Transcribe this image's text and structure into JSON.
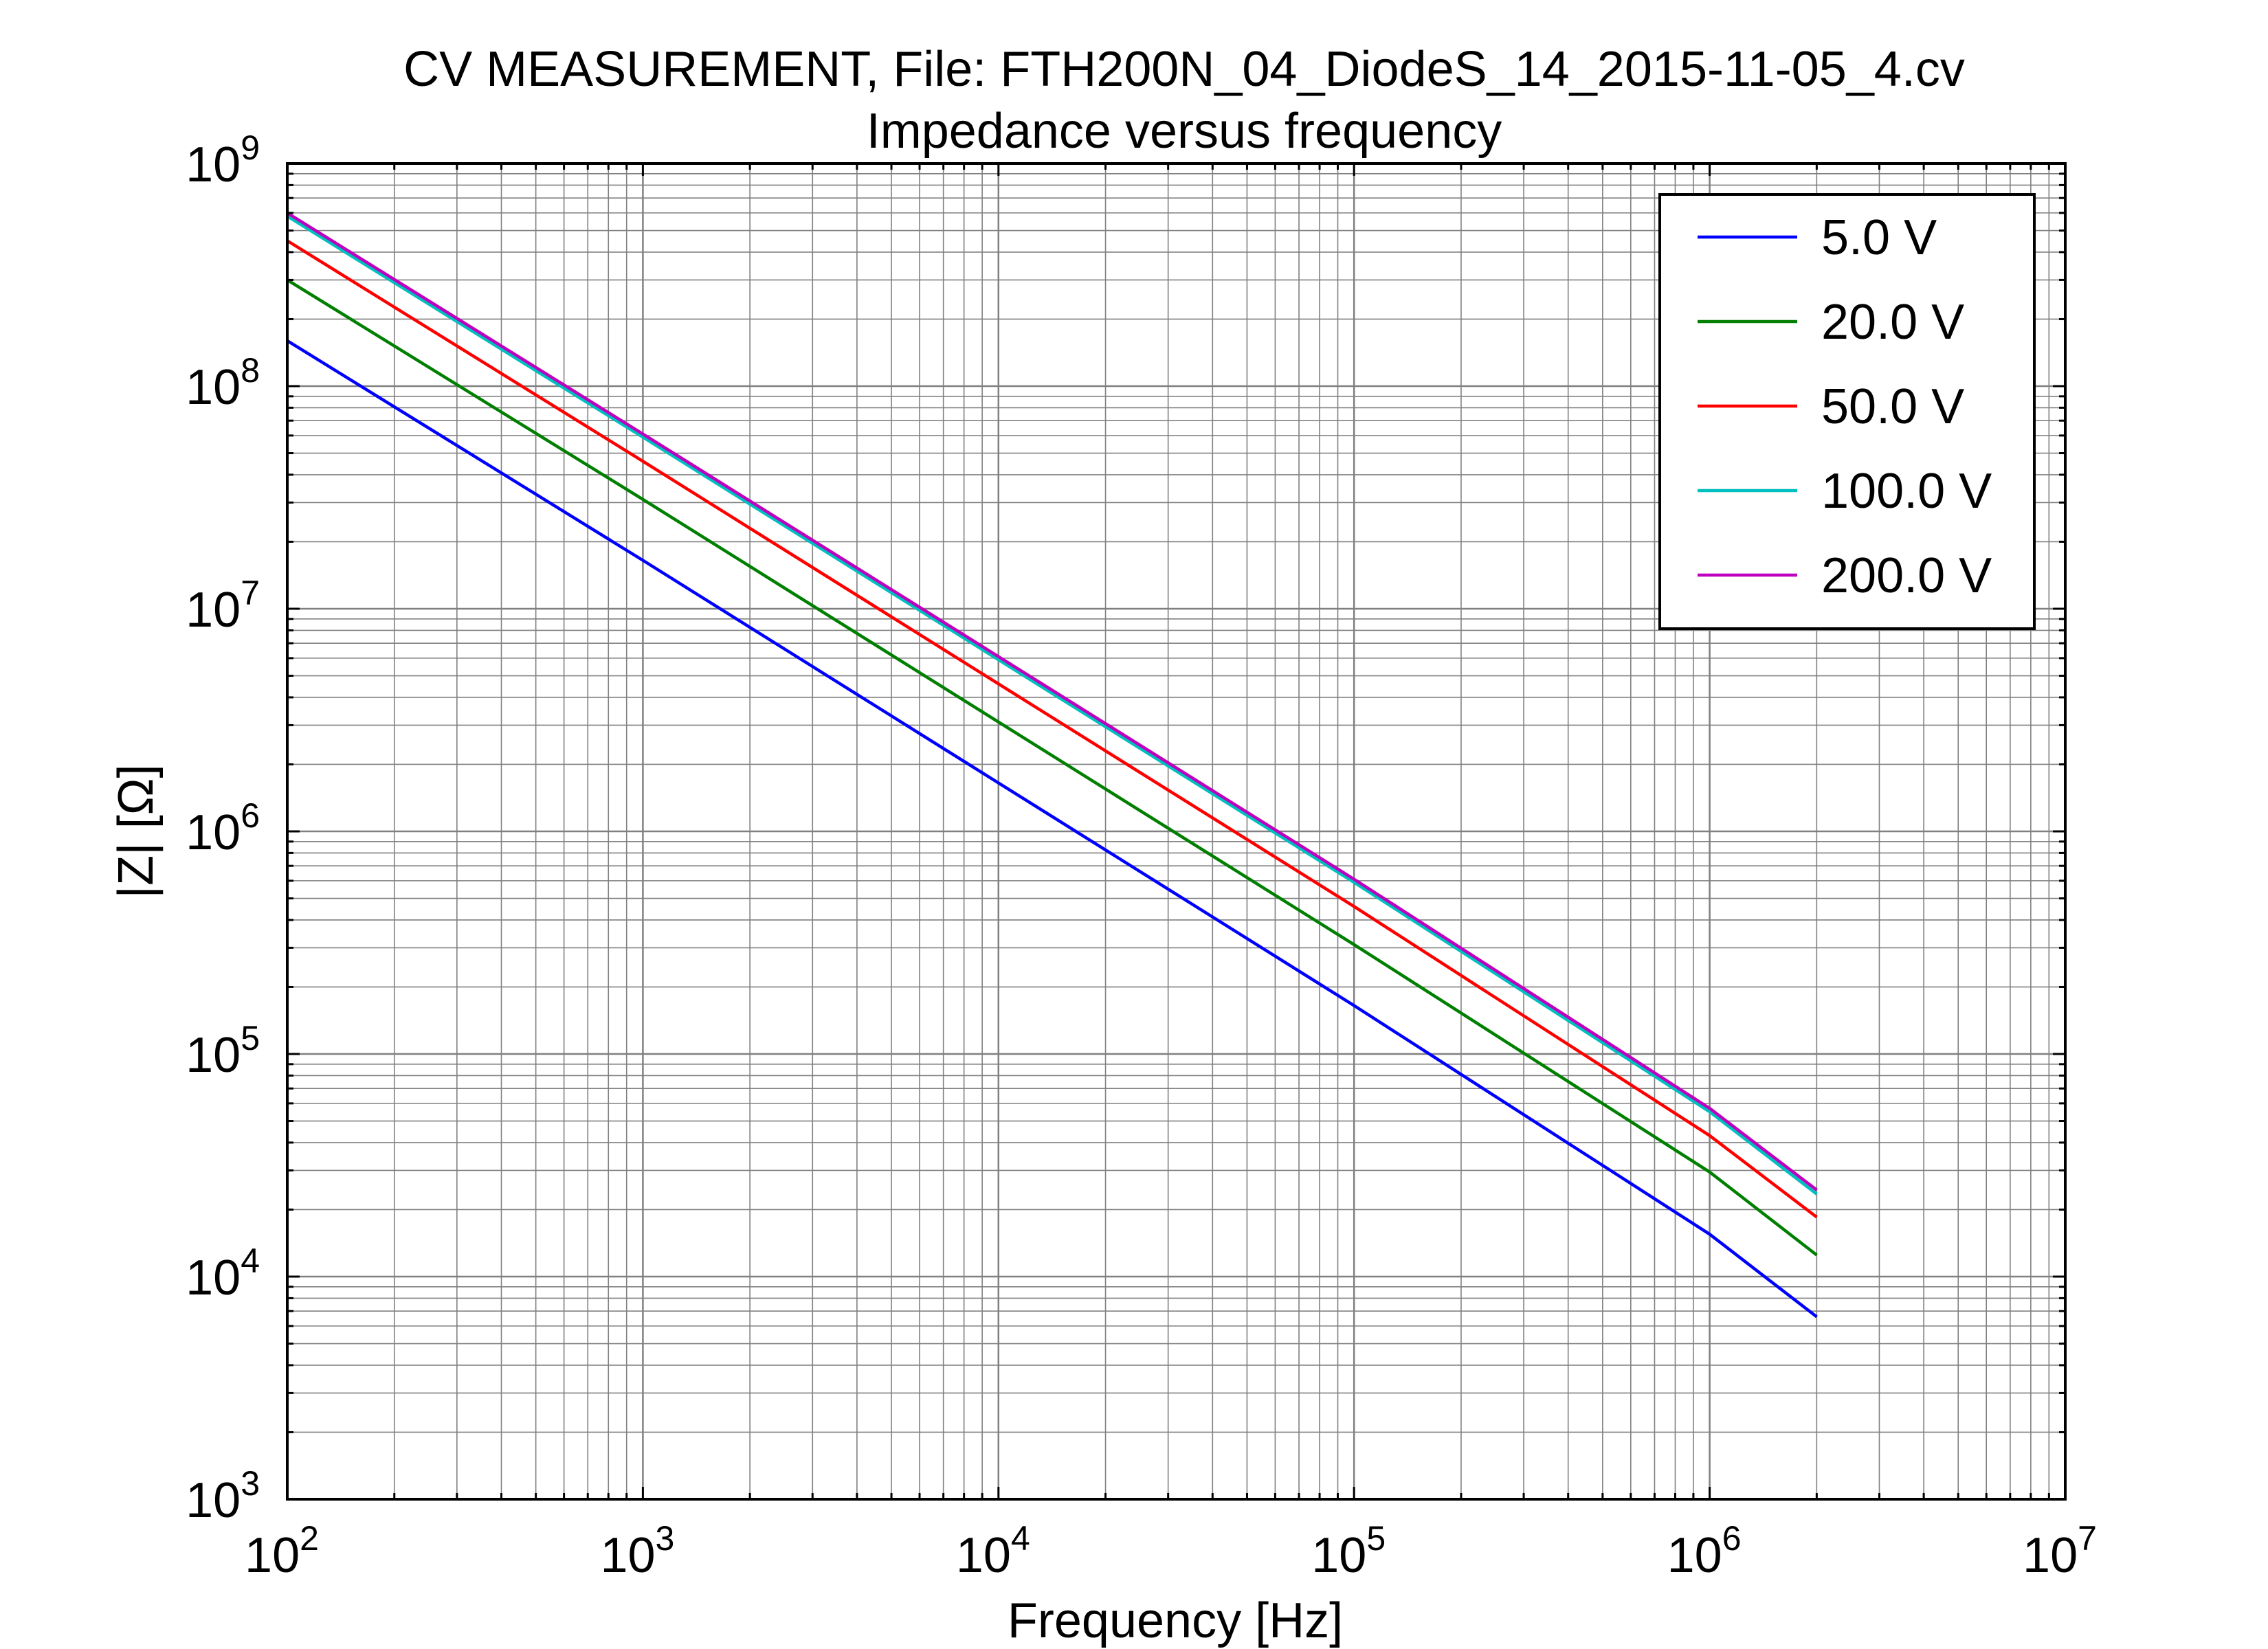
{
  "chart_data": {
    "type": "line",
    "title": "CV MEASUREMENT, File: FTH200N_04_DiodeS_14_2015-11-05_4.cv",
    "subtitle": "Impedance versus frequency",
    "xlabel": "Frequency [Hz]",
    "ylabel": "|Z| [Ω]",
    "xscale": "log",
    "yscale": "log",
    "xlim": [
      100,
      10000000
    ],
    "ylim": [
      1000,
      1000000000
    ],
    "xtick_exponents": [
      "2",
      "3",
      "4",
      "5",
      "6",
      "7"
    ],
    "ytick_exponents": [
      "3",
      "4",
      "5",
      "6",
      "7",
      "8",
      "9"
    ],
    "tick_base": "10",
    "grid": true,
    "legend_position": "top-right",
    "x": [
      100,
      1000,
      10000,
      100000,
      1000000,
      2000000
    ],
    "series": [
      {
        "name": "5.0 V",
        "color": "#0000ff",
        "values": [
          160000000,
          16500000,
          1650000,
          165000,
          15500,
          6600
        ]
      },
      {
        "name": "20.0 V",
        "color": "#007f00",
        "values": [
          300000000,
          31000000,
          3100000,
          310000,
          29500,
          12500
        ]
      },
      {
        "name": "50.0 V",
        "color": "#ff0000",
        "values": [
          450000000,
          46000000,
          4600000,
          460000,
          43000,
          18500
        ]
      },
      {
        "name": "100.0 V",
        "color": "#00bfbf",
        "values": [
          580000000,
          59000000,
          5900000,
          590000,
          55000,
          23500
        ]
      },
      {
        "name": "200.0 V",
        "color": "#bf00bf",
        "values": [
          600000000,
          61000000,
          6100000,
          610000,
          57000,
          24500
        ]
      }
    ]
  }
}
